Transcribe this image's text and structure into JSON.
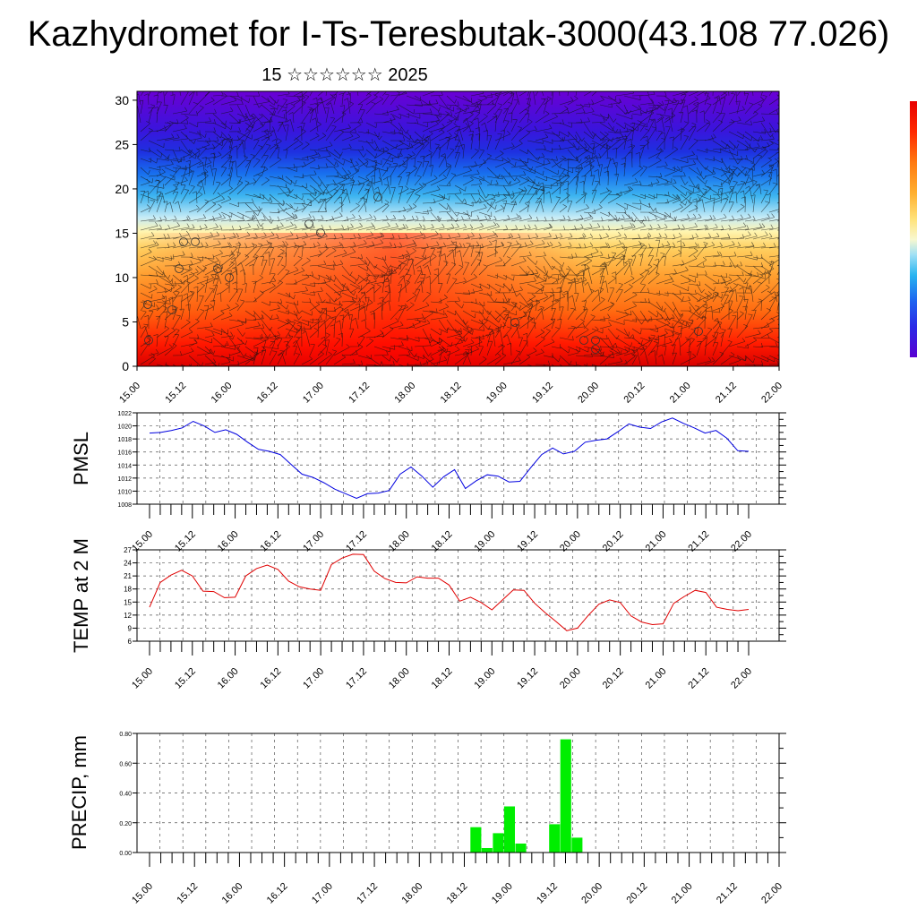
{
  "title": "Kazhydromet for I-Ts-Teresbutak-3000(43.108 77.026)",
  "subtitle": "15 ☆☆☆☆☆☆ 2025",
  "time_labels": [
    "15.00",
    "15.12",
    "16.00",
    "16.12",
    "17.00",
    "17.12",
    "18.00",
    "18.12",
    "19.00",
    "19.12",
    "20.00",
    "20.12",
    "21.00",
    "21.12",
    "22.00"
  ],
  "chart_data": [
    {
      "type": "heatmap",
      "description_fields": "temperature-profile field with wind barbs",
      "y_ticks": [
        0,
        5,
        10,
        15,
        20,
        25,
        30
      ],
      "ylim": [
        0,
        31
      ],
      "colorbar": {
        "colors": [
          "#5a00d2",
          "#2a2ae6",
          "#1e64f0",
          "#28b4f0",
          "#9fe0f5",
          "#f8f8d0",
          "#ffe27a",
          "#ffb030",
          "#ff7a10",
          "#ff2a00",
          "#e80000"
        ]
      }
    },
    {
      "type": "line",
      "ylabel": "PMSL",
      "ylim": [
        1008,
        1022
      ],
      "y_ticks": [
        1008,
        1010,
        1012,
        1014,
        1016,
        1018,
        1020,
        1022
      ],
      "color": "#0000e0",
      "values": [
        1018.9,
        1019.0,
        1019.3,
        1019.7,
        1020.7,
        1020.0,
        1019.0,
        1019.4,
        1018.7,
        1017.5,
        1016.4,
        1016.1,
        1015.6,
        1014.1,
        1012.6,
        1012.1,
        1011.3,
        1010.3,
        1009.6,
        1008.9,
        1009.6,
        1009.7,
        1010.1,
        1012.6,
        1013.7,
        1012.3,
        1010.6,
        1012.2,
        1013.3,
        1010.4,
        1011.6,
        1012.5,
        1012.3,
        1011.4,
        1011.5,
        1013.6,
        1015.6,
        1016.6,
        1015.7,
        1016.1,
        1017.5,
        1017.8,
        1018.0,
        1019.1,
        1020.3,
        1019.8,
        1019.6,
        1020.6,
        1021.2,
        1020.4,
        1019.7,
        1018.9,
        1019.3,
        1018.1,
        1016.2,
        1016.1
      ]
    },
    {
      "type": "line",
      "ylabel": "TEMP at 2 M",
      "ylim": [
        6,
        27
      ],
      "y_ticks": [
        6,
        9,
        12,
        15,
        18,
        21,
        24,
        27
      ],
      "color": "#e00000",
      "values": [
        13.8,
        19.5,
        21.2,
        22.3,
        21.0,
        17.5,
        17.4,
        16.0,
        16.1,
        21.0,
        22.7,
        23.5,
        22.5,
        19.8,
        18.5,
        18.0,
        17.7,
        23.6,
        25.1,
        26.0,
        25.9,
        22.1,
        20.4,
        19.5,
        19.4,
        20.8,
        20.5,
        20.5,
        18.9,
        15.2,
        16.1,
        14.9,
        13.2,
        15.5,
        17.8,
        17.7,
        14.7,
        12.5,
        10.5,
        8.4,
        9.0,
        11.9,
        14.5,
        15.5,
        14.9,
        11.8,
        10.4,
        9.8,
        10.0,
        14.7,
        16.3,
        17.7,
        17.2,
        13.8,
        13.3,
        13.0,
        13.3
      ]
    },
    {
      "type": "bar",
      "ylabel": "PRECIP, mm",
      "ylim": [
        0,
        0.8
      ],
      "y_ticks": [
        "0.00",
        "0.20",
        "0.40",
        "0.60",
        "0.80"
      ],
      "color": "#00ee00",
      "values": [
        0,
        0,
        0,
        0,
        0,
        0,
        0,
        0,
        0,
        0,
        0,
        0,
        0,
        0,
        0,
        0,
        0,
        0,
        0,
        0,
        0,
        0,
        0,
        0,
        0,
        0,
        0,
        0,
        0,
        0.17,
        0.03,
        0.13,
        0.31,
        0.06,
        0,
        0,
        0.19,
        0.76,
        0.1,
        0,
        0,
        0,
        0,
        0,
        0,
        0,
        0,
        0,
        0,
        0,
        0,
        0,
        0,
        0,
        0,
        0
      ]
    }
  ]
}
